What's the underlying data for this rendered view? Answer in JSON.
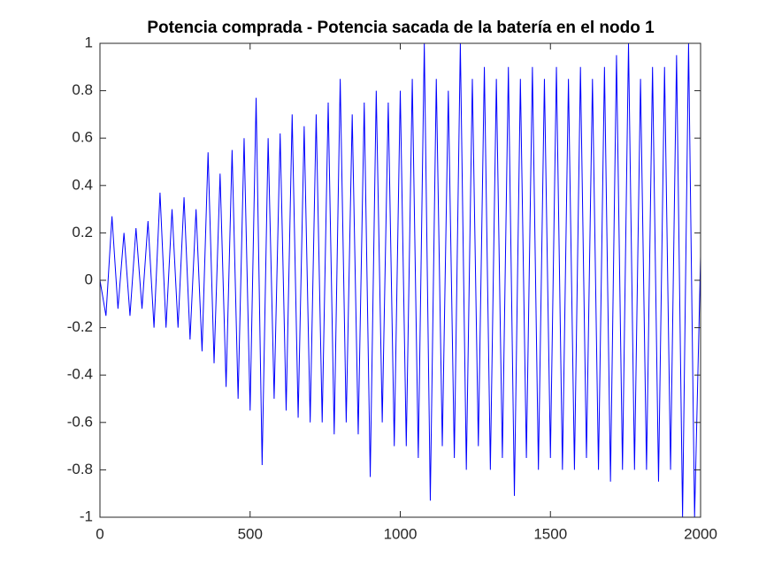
{
  "chart_data": {
    "type": "line",
    "title": "Potencia comprada - Potencia sacada de la batería en el nodo 1",
    "x": [
      0,
      20,
      40,
      60,
      80,
      100,
      120,
      140,
      160,
      180,
      200,
      220,
      240,
      260,
      280,
      300,
      320,
      340,
      360,
      380,
      400,
      420,
      440,
      460,
      480,
      500,
      520,
      540,
      560,
      580,
      600,
      620,
      640,
      660,
      680,
      700,
      720,
      740,
      760,
      780,
      800,
      820,
      840,
      860,
      880,
      900,
      920,
      940,
      960,
      980,
      1000,
      1020,
      1040,
      1060,
      1080,
      1100,
      1120,
      1140,
      1160,
      1180,
      1200,
      1220,
      1240,
      1260,
      1280,
      1300,
      1320,
      1340,
      1360,
      1380,
      1400,
      1420,
      1440,
      1460,
      1480,
      1500,
      1520,
      1540,
      1560,
      1580,
      1600,
      1620,
      1640,
      1660,
      1680,
      1700,
      1720,
      1740,
      1760,
      1780,
      1800,
      1820,
      1840,
      1860,
      1880,
      1900,
      1920,
      1940,
      1960,
      1980,
      2000
    ],
    "series": [
      {
        "color": "#0000ff",
        "values": [
          0,
          -0.15,
          0.27,
          -0.12,
          0.2,
          -0.15,
          0.22,
          -0.12,
          0.25,
          -0.2,
          0.37,
          -0.2,
          0.3,
          -0.2,
          0.35,
          -0.25,
          0.3,
          -0.3,
          0.54,
          -0.35,
          0.45,
          -0.45,
          0.55,
          -0.5,
          0.6,
          -0.55,
          0.77,
          -0.78,
          0.6,
          -0.5,
          0.62,
          -0.55,
          0.7,
          -0.58,
          0.65,
          -0.6,
          0.7,
          -0.6,
          0.75,
          -0.65,
          0.85,
          -0.6,
          0.7,
          -0.65,
          0.75,
          -0.83,
          0.8,
          -0.6,
          0.75,
          -0.7,
          0.8,
          -0.7,
          0.85,
          -0.75,
          1,
          -0.93,
          0.85,
          -0.7,
          0.8,
          -0.75,
          1,
          -0.8,
          0.85,
          -0.7,
          0.9,
          -0.8,
          0.85,
          -0.75,
          0.9,
          -0.91,
          0.85,
          -0.75,
          0.9,
          -0.8,
          0.85,
          -0.75,
          0.9,
          -0.8,
          0.85,
          -0.8,
          0.9,
          -0.75,
          0.85,
          -0.8,
          0.9,
          -0.85,
          0.95,
          -0.8,
          1,
          -0.8,
          0.85,
          -0.8,
          0.9,
          -0.85,
          0.9,
          -0.8,
          0.95,
          -1,
          1,
          -1,
          0.1
        ]
      }
    ],
    "xlim": [
      0,
      2000
    ],
    "xticks": [
      0,
      500,
      1000,
      1500,
      2000
    ],
    "ylim": [
      -1,
      1
    ],
    "yticks": [
      -1,
      -0.8,
      -0.6,
      -0.4,
      -0.2,
      0,
      0.2,
      0.4,
      0.6,
      0.8,
      1
    ]
  }
}
